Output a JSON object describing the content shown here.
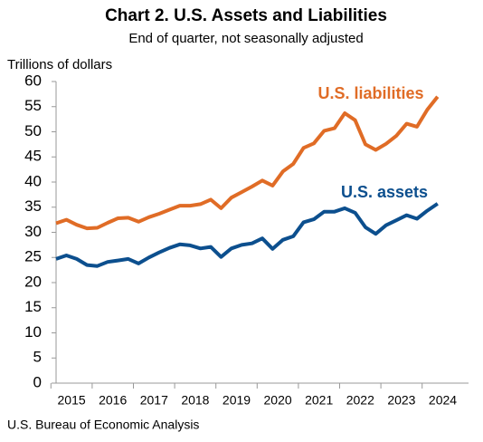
{
  "chart_data": {
    "type": "line",
    "title": "Chart 2. U.S. Assets and Liabilities",
    "subtitle": "End of quarter, not seasonally adjusted",
    "y_label": "Trillions of dollars",
    "source": "U.S. Bureau of Economic Analysis",
    "categories": [
      "2015",
      null,
      null,
      null,
      "2016",
      null,
      null,
      null,
      "2017",
      null,
      null,
      null,
      "2018",
      null,
      null,
      null,
      "2019",
      null,
      null,
      null,
      "2020",
      null,
      null,
      null,
      "2021",
      null,
      null,
      null,
      "2022",
      null,
      null,
      null,
      "2023",
      null,
      null,
      null,
      "2024",
      null
    ],
    "series": [
      {
        "name": "U.S. liabilities",
        "color": "#e06c26",
        "values": [
          31.8,
          32.5,
          31.5,
          30.8,
          30.9,
          31.9,
          32.8,
          32.9,
          32.1,
          33.0,
          33.7,
          34.5,
          35.3,
          35.3,
          35.6,
          36.5,
          34.8,
          36.9,
          38.0,
          39.1,
          40.3,
          39.3,
          42.1,
          43.6,
          46.8,
          47.7,
          50.2,
          50.7,
          53.7,
          52.3,
          47.5,
          46.4,
          47.6,
          49.2,
          51.6,
          51.0,
          54.4,
          57.0
        ]
      },
      {
        "name": "U.S. assets",
        "color": "#0c4f8e",
        "values": [
          24.7,
          25.4,
          24.7,
          23.5,
          23.3,
          24.1,
          24.4,
          24.7,
          23.8,
          25.0,
          26.0,
          26.9,
          27.6,
          27.4,
          26.8,
          27.1,
          25.1,
          26.8,
          27.5,
          27.8,
          28.8,
          26.7,
          28.5,
          29.2,
          32.0,
          32.6,
          34.1,
          34.1,
          34.8,
          33.9,
          31.0,
          29.7,
          31.4,
          32.4,
          33.4,
          32.7,
          34.3,
          35.7
        ]
      }
    ],
    "ylim": [
      0,
      60
    ],
    "yticks": [
      0,
      5,
      10,
      15,
      20,
      25,
      30,
      35,
      40,
      45,
      50,
      55,
      60
    ],
    "grid": false
  }
}
